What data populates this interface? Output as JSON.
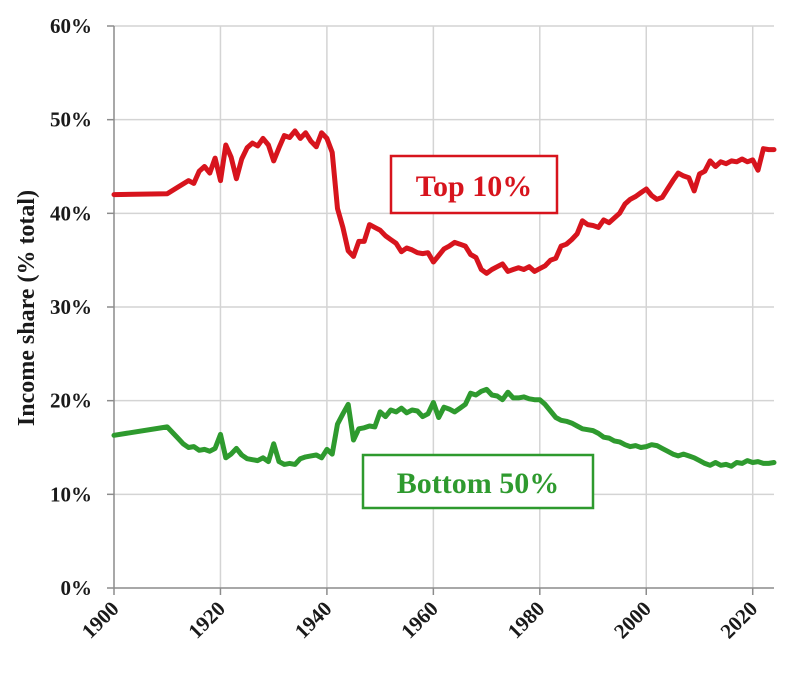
{
  "chart_data": {
    "type": "line",
    "xlabel": "",
    "ylabel": "Income share (% total)",
    "xlim": [
      1900,
      2024
    ],
    "ylim": [
      0,
      60
    ],
    "x_ticks": [
      1900,
      1920,
      1940,
      1960,
      1980,
      2000,
      2020
    ],
    "y_ticks": [
      0,
      10,
      20,
      30,
      40,
      50,
      60
    ],
    "y_tick_labels": [
      "0%",
      "10%",
      "20%",
      "30%",
      "40%",
      "50%",
      "60%"
    ],
    "grid": true,
    "colors": {
      "top10": "#d7141d",
      "bottom50": "#2e9a2e"
    },
    "series": [
      {
        "name": "Top 10%",
        "color": "#d7141d",
        "x": [
          1900,
          1910,
          1912,
          1914,
          1915,
          1916,
          1917,
          1918,
          1919,
          1920,
          1921,
          1922,
          1923,
          1924,
          1925,
          1926,
          1927,
          1928,
          1929,
          1930,
          1931,
          1932,
          1933,
          1934,
          1935,
          1936,
          1937,
          1938,
          1939,
          1940,
          1941,
          1942,
          1943,
          1944,
          1945,
          1946,
          1947,
          1948,
          1949,
          1950,
          1951,
          1952,
          1953,
          1954,
          1955,
          1956,
          1957,
          1958,
          1959,
          1960,
          1961,
          1962,
          1963,
          1964,
          1965,
          1966,
          1967,
          1968,
          1969,
          1970,
          1971,
          1972,
          1973,
          1974,
          1975,
          1976,
          1977,
          1978,
          1979,
          1980,
          1981,
          1982,
          1983,
          1984,
          1985,
          1986,
          1987,
          1988,
          1989,
          1990,
          1991,
          1992,
          1993,
          1994,
          1995,
          1996,
          1997,
          1998,
          1999,
          2000,
          2001,
          2002,
          2003,
          2004,
          2005,
          2006,
          2007,
          2008,
          2009,
          2010,
          2011,
          2012,
          2013,
          2014,
          2015,
          2016,
          2017,
          2018,
          2019,
          2020,
          2021,
          2022,
          2023,
          2024
        ],
        "values": [
          42.0,
          42.1,
          42.8,
          43.5,
          43.2,
          44.5,
          45.0,
          44.3,
          45.9,
          43.5,
          47.3,
          46.0,
          43.7,
          45.8,
          47.0,
          47.5,
          47.2,
          48.0,
          47.3,
          45.6,
          47.0,
          48.3,
          48.1,
          48.8,
          48.0,
          48.6,
          47.7,
          47.1,
          48.6,
          48.0,
          46.5,
          40.5,
          38.5,
          36.0,
          35.4,
          37.0,
          37.0,
          38.8,
          38.5,
          38.2,
          37.6,
          37.2,
          36.8,
          35.9,
          36.3,
          36.1,
          35.8,
          35.7,
          35.8,
          34.8,
          35.5,
          36.2,
          36.5,
          36.9,
          36.7,
          36.5,
          35.6,
          35.3,
          34.0,
          33.6,
          34.0,
          34.3,
          34.6,
          33.8,
          34.0,
          34.2,
          34.0,
          34.3,
          33.8,
          34.1,
          34.4,
          35.0,
          35.2,
          36.5,
          36.7,
          37.2,
          37.8,
          39.2,
          38.8,
          38.7,
          38.5,
          39.3,
          39.0,
          39.5,
          40.0,
          41.0,
          41.5,
          41.8,
          42.2,
          42.6,
          41.9,
          41.5,
          41.7,
          42.6,
          43.5,
          44.3,
          44.0,
          43.8,
          42.4,
          44.2,
          44.5,
          45.6,
          45.0,
          45.5,
          45.3,
          45.6,
          45.5,
          45.8,
          45.5,
          45.7,
          44.6,
          46.9,
          46.8,
          46.8
        ]
      },
      {
        "name": "Bottom 50%",
        "color": "#2e9a2e",
        "x": [
          1900,
          1910,
          1912,
          1913,
          1914,
          1915,
          1916,
          1917,
          1918,
          1919,
          1920,
          1921,
          1922,
          1923,
          1924,
          1925,
          1926,
          1927,
          1928,
          1929,
          1930,
          1931,
          1932,
          1933,
          1934,
          1935,
          1936,
          1937,
          1938,
          1939,
          1940,
          1941,
          1942,
          1943,
          1944,
          1945,
          1946,
          1947,
          1948,
          1949,
          1950,
          1951,
          1952,
          1953,
          1954,
          1955,
          1956,
          1957,
          1958,
          1959,
          1960,
          1961,
          1962,
          1963,
          1964,
          1965,
          1966,
          1967,
          1968,
          1969,
          1970,
          1971,
          1972,
          1973,
          1974,
          1975,
          1976,
          1977,
          1978,
          1979,
          1980,
          1981,
          1982,
          1983,
          1984,
          1985,
          1986,
          1987,
          1988,
          1989,
          1990,
          1991,
          1992,
          1993,
          1994,
          1995,
          1996,
          1997,
          1998,
          1999,
          2000,
          2001,
          2002,
          2003,
          2004,
          2005,
          2006,
          2007,
          2008,
          2009,
          2010,
          2011,
          2012,
          2013,
          2014,
          2015,
          2016,
          2017,
          2018,
          2019,
          2020,
          2021,
          2022,
          2023,
          2024
        ],
        "values": [
          16.3,
          17.2,
          16.0,
          15.4,
          15.0,
          15.1,
          14.7,
          14.8,
          14.6,
          14.9,
          16.4,
          13.9,
          14.3,
          14.9,
          14.2,
          13.8,
          13.7,
          13.6,
          13.9,
          13.5,
          15.4,
          13.5,
          13.2,
          13.3,
          13.2,
          13.8,
          14.0,
          14.1,
          14.2,
          13.9,
          14.8,
          14.3,
          17.5,
          18.6,
          19.6,
          15.8,
          17.0,
          17.1,
          17.3,
          17.2,
          18.8,
          18.3,
          19.0,
          18.8,
          19.2,
          18.7,
          19.0,
          18.9,
          18.3,
          18.6,
          19.8,
          18.2,
          19.3,
          19.1,
          18.8,
          19.2,
          19.6,
          20.8,
          20.6,
          21.0,
          21.2,
          20.6,
          20.5,
          20.1,
          20.9,
          20.3,
          20.3,
          20.4,
          20.2,
          20.1,
          20.1,
          19.6,
          18.9,
          18.2,
          17.9,
          17.8,
          17.6,
          17.3,
          17.0,
          16.9,
          16.8,
          16.5,
          16.1,
          16.0,
          15.7,
          15.6,
          15.3,
          15.1,
          15.2,
          15.0,
          15.1,
          15.3,
          15.2,
          14.9,
          14.6,
          14.3,
          14.1,
          14.3,
          14.1,
          13.9,
          13.6,
          13.3,
          13.1,
          13.4,
          13.1,
          13.2,
          13.0,
          13.4,
          13.3,
          13.6,
          13.4,
          13.5,
          13.3,
          13.3,
          13.4
        ]
      }
    ]
  }
}
